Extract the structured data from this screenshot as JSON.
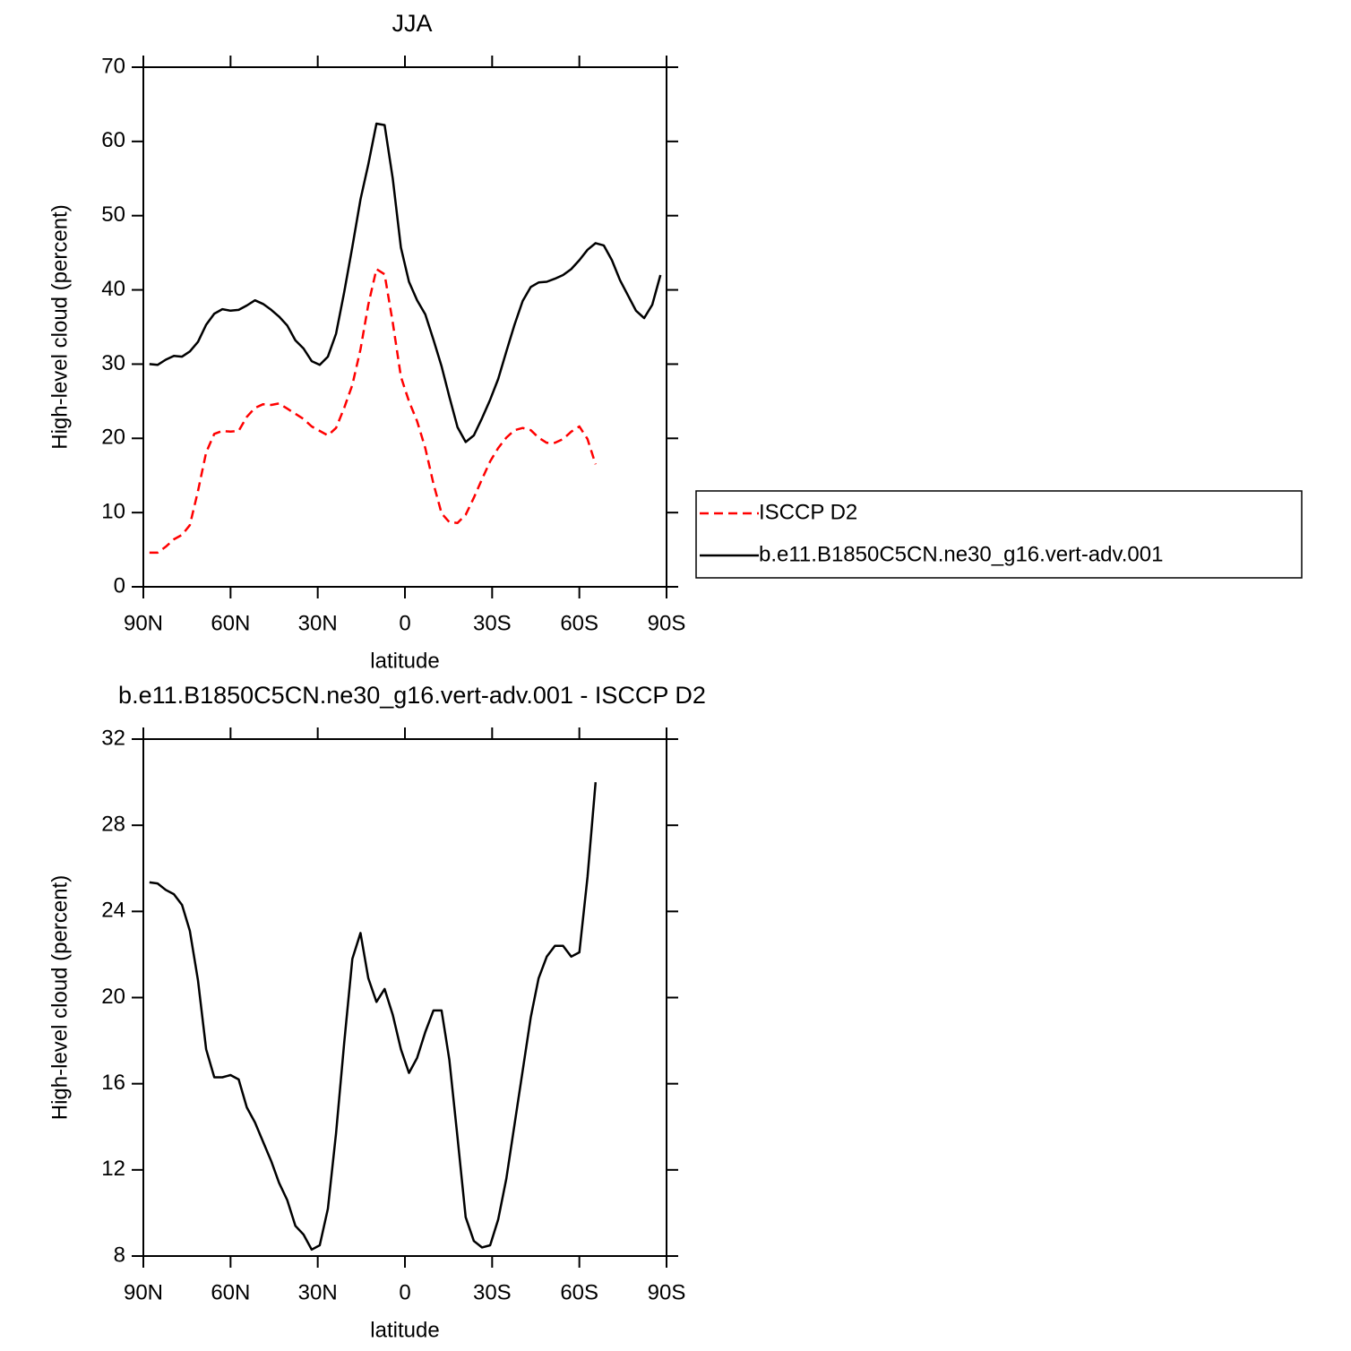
{
  "chart_data": [
    {
      "type": "line",
      "title": "JJA",
      "xlabel": "latitude",
      "ylabel": "High-level cloud (percent)",
      "x": [
        87.9,
        85.1,
        82.3,
        79.5,
        76.7,
        74.0,
        71.2,
        68.4,
        65.6,
        62.8,
        60.0,
        57.2,
        54.4,
        51.6,
        48.8,
        46.0,
        43.3,
        40.5,
        37.7,
        34.9,
        32.1,
        29.3,
        26.5,
        23.7,
        20.9,
        18.1,
        15.3,
        12.6,
        9.8,
        7.0,
        4.2,
        1.4,
        -1.4,
        -4.2,
        -7.0,
        -9.8,
        -12.6,
        -15.3,
        -18.1,
        -20.9,
        -23.7,
        -26.5,
        -29.3,
        -32.1,
        -34.9,
        -37.7,
        -40.5,
        -43.3,
        -46.0,
        -48.8,
        -51.6,
        -54.4,
        -57.2,
        -60.0,
        -62.8,
        -65.6,
        -68.4,
        -71.2,
        -74.0,
        -76.7,
        -79.5,
        -82.3,
        -85.1,
        -87.9
      ],
      "series": [
        {
          "name": "ISCCP D2",
          "color": "#ff0000",
          "linestyle": "dashed",
          "values": [
            4.6,
            4.6,
            5.4,
            6.4,
            7.0,
            8.3,
            12.9,
            18.1,
            20.6,
            21.0,
            20.9,
            21.0,
            22.9,
            24.1,
            24.6,
            24.5,
            24.7,
            24.0,
            23.3,
            22.6,
            21.6,
            21.0,
            20.4,
            21.4,
            24.1,
            27.2,
            32.0,
            38.0,
            42.8,
            42.1,
            35.6,
            28.3,
            25.0,
            22.3,
            18.7,
            13.9,
            9.9,
            8.7,
            8.6,
            9.7,
            12.0,
            14.5,
            16.9,
            18.7,
            20.1,
            21.1,
            21.4,
            21.1,
            20.1,
            19.4,
            19.4,
            19.9,
            20.9,
            21.6,
            19.9,
            16.5,
            null,
            null,
            null,
            null,
            null,
            null,
            null,
            null
          ]
        },
        {
          "name": "b.e11.B1850C5CN.ne30_g16.vert-adv.001",
          "color": "#000000",
          "linestyle": "solid",
          "values": [
            30.0,
            29.9,
            30.6,
            31.1,
            31.0,
            31.7,
            33.0,
            35.3,
            36.8,
            37.4,
            37.2,
            37.3,
            37.9,
            38.6,
            38.1,
            37.3,
            36.4,
            35.2,
            33.2,
            32.1,
            30.4,
            29.9,
            31.0,
            34.1,
            39.7,
            45.8,
            52.2,
            56.9,
            62.4,
            62.2,
            55.0,
            45.7,
            41.1,
            38.6,
            36.7,
            33.3,
            29.7,
            25.6,
            21.5,
            19.5,
            20.4,
            22.7,
            25.2,
            28.0,
            31.7,
            35.3,
            38.5,
            40.4,
            41.0,
            41.1,
            41.5,
            42.0,
            42.8,
            44.0,
            45.4,
            46.3,
            46.0,
            44.0,
            41.3,
            39.3,
            37.2,
            36.2,
            38.0,
            42.0
          ]
        }
      ],
      "xlim": [
        90,
        -90
      ],
      "xticks": [
        {
          "value": 90,
          "label": "90N"
        },
        {
          "value": 60,
          "label": "60N"
        },
        {
          "value": 30,
          "label": "30N"
        },
        0,
        {
          "value": -30,
          "label": "30S"
        },
        {
          "value": -60,
          "label": "60S"
        },
        {
          "value": -90,
          "label": "90S"
        }
      ],
      "ylim": [
        0,
        70
      ],
      "yticks": [
        0,
        10,
        20,
        30,
        40,
        50,
        60,
        70
      ],
      "legend": true,
      "legend_position": "right"
    },
    {
      "type": "line",
      "title": "b.e11.B1850C5CN.ne30_g16.vert-adv.001 - ISCCP D2",
      "xlabel": "latitude",
      "ylabel": "High-level cloud (percent)",
      "x": [
        87.9,
        85.1,
        82.3,
        79.5,
        76.7,
        74.0,
        71.2,
        68.4,
        65.6,
        62.8,
        60.0,
        57.2,
        54.4,
        51.6,
        48.8,
        46.0,
        43.3,
        40.5,
        37.7,
        34.9,
        32.1,
        29.3,
        26.5,
        23.7,
        20.9,
        18.1,
        15.3,
        12.6,
        9.8,
        7.0,
        4.2,
        1.4,
        -1.4,
        -4.2,
        -7.0,
        -9.8,
        -12.6,
        -15.3,
        -18.1,
        -20.9,
        -23.7,
        -26.5,
        -29.3,
        -32.1,
        -34.9,
        -37.7,
        -40.5,
        -43.3,
        -46.0,
        -48.8,
        -51.6,
        -54.4,
        -57.2,
        -60.0,
        -62.8,
        -65.6,
        -68.4,
        -71.2,
        -74.0,
        -76.7,
        -79.5,
        -82.3,
        -85.1,
        -87.9
      ],
      "series": [
        {
          "color": "#000000",
          "linestyle": "solid",
          "values": [
            25.35,
            25.3,
            25.0,
            24.8,
            24.3,
            23.1,
            20.8,
            17.6,
            16.3,
            16.3,
            16.4,
            16.2,
            14.9,
            14.2,
            13.3,
            12.4,
            11.4,
            10.6,
            9.4,
            9.0,
            8.3,
            8.5,
            10.2,
            13.7,
            17.9,
            21.8,
            23.0,
            20.9,
            19.8,
            20.4,
            19.2,
            17.6,
            16.5,
            17.2,
            18.4,
            19.4,
            19.4,
            17.1,
            13.5,
            9.8,
            8.7,
            8.4,
            8.5,
            9.7,
            11.6,
            14.1,
            16.6,
            19.1,
            20.9,
            21.9,
            22.4,
            22.4,
            21.9,
            22.1,
            25.6,
            30.0,
            null,
            null,
            null,
            null,
            null,
            null,
            null,
            null
          ]
        }
      ],
      "xlim": [
        90,
        -90
      ],
      "xticks": [
        {
          "value": 90,
          "label": "90N"
        },
        {
          "value": 60,
          "label": "60N"
        },
        {
          "value": 30,
          "label": "30N"
        },
        0,
        {
          "value": -30,
          "label": "30S"
        },
        {
          "value": -60,
          "label": "60S"
        },
        {
          "value": -90,
          "label": "90S"
        }
      ],
      "ylim": [
        8,
        32
      ],
      "yticks": [
        8,
        12,
        16,
        20,
        24,
        28,
        32
      ],
      "legend": false
    }
  ]
}
